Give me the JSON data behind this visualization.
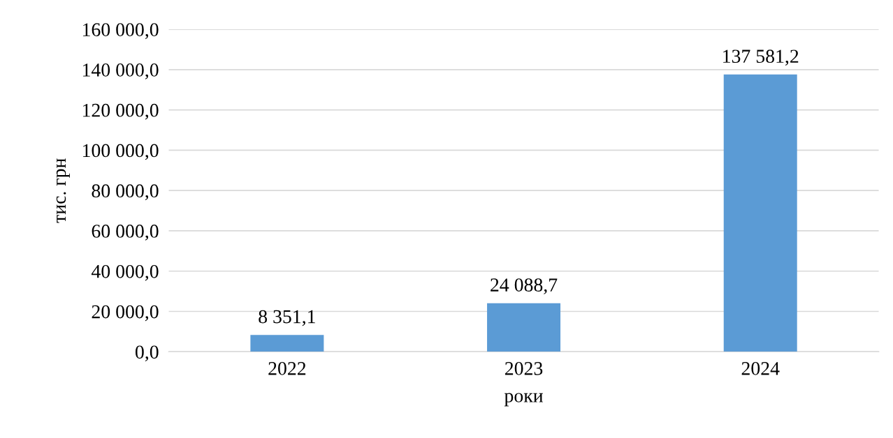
{
  "chart_data": {
    "type": "bar",
    "xlabel": "роки",
    "ylabel": "тис. грн",
    "categories": [
      "2022",
      "2023",
      "2024"
    ],
    "values": [
      8351.1,
      24088.7,
      137581.2
    ],
    "value_labels": [
      "8 351,1",
      "24 088,7",
      "137 581,2"
    ],
    "color": "#5b9bd5",
    "ylim": [
      0,
      160000
    ],
    "yticks": [
      {
        "value": 0,
        "label": "0,0"
      },
      {
        "value": 20000,
        "label": "20 000,0"
      },
      {
        "value": 40000,
        "label": "40 000,0"
      },
      {
        "value": 60000,
        "label": "60 000,0"
      },
      {
        "value": 80000,
        "label": "80 000,0"
      },
      {
        "value": 100000,
        "label": "100 000,0"
      },
      {
        "value": 120000,
        "label": "120 000,0"
      },
      {
        "value": 140000,
        "label": "140 000,0"
      },
      {
        "value": 160000,
        "label": "160 000,0"
      }
    ],
    "grid": "y"
  }
}
